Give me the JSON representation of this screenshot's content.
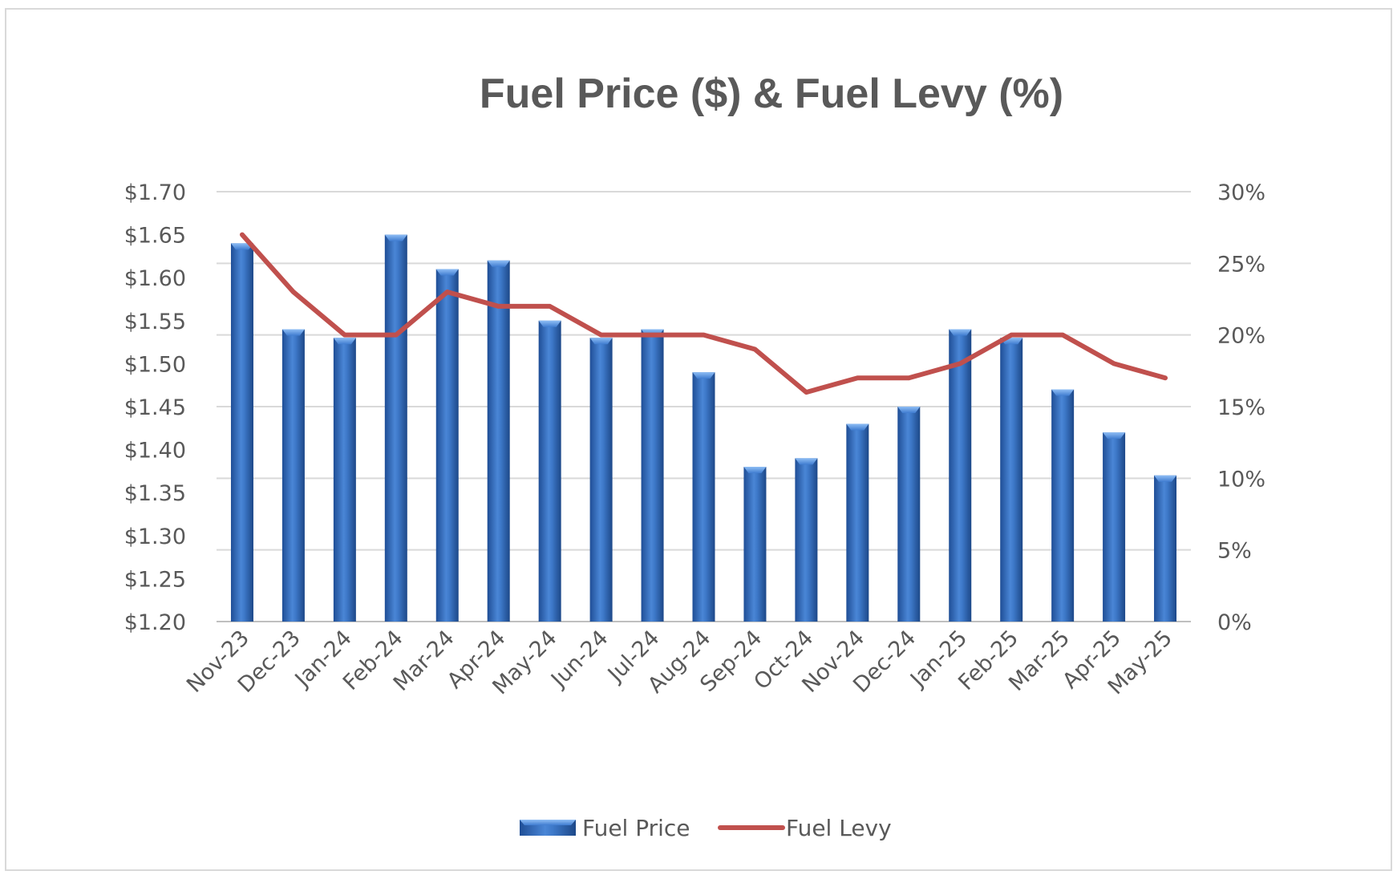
{
  "chart_data": {
    "type": "bar",
    "title": "Fuel Price ($) & Fuel Levy (%)",
    "categories": [
      "Nov-23",
      "Dec-23",
      "Jan-24",
      "Feb-24",
      "Mar-24",
      "Apr-24",
      "May-24",
      "Jun-24",
      "Jul-24",
      "Aug-24",
      "Sep-24",
      "Oct-24",
      "Nov-24",
      "Dec-24",
      "Jan-25",
      "Feb-25",
      "Mar-25",
      "Apr-25",
      "May-25"
    ],
    "series": [
      {
        "name": "Fuel Price",
        "type": "bar",
        "axis": "left",
        "color": "#3a6fc0",
        "values": [
          1.64,
          1.54,
          1.53,
          1.65,
          1.61,
          1.62,
          1.55,
          1.53,
          1.54,
          1.49,
          1.38,
          1.39,
          1.43,
          1.45,
          1.54,
          1.53,
          1.47,
          1.42,
          1.37
        ]
      },
      {
        "name": "Fuel Levy",
        "type": "line",
        "axis": "right",
        "color": "#c0504d",
        "values": [
          27,
          23,
          20,
          20,
          23,
          22,
          22,
          20,
          20,
          20,
          19,
          16,
          17,
          17,
          18,
          20,
          20,
          18,
          17
        ]
      }
    ],
    "y_left": {
      "ylim": [
        1.2,
        1.7
      ],
      "ticks": [
        1.2,
        1.25,
        1.3,
        1.35,
        1.4,
        1.45,
        1.5,
        1.55,
        1.6,
        1.65,
        1.7
      ],
      "tick_labels": [
        "$1.20",
        "$1.25",
        "$1.30",
        "$1.35",
        "$1.40",
        "$1.45",
        "$1.50",
        "$1.55",
        "$1.60",
        "$1.65",
        "$1.70"
      ]
    },
    "y_right": {
      "ylim": [
        0,
        30
      ],
      "ticks": [
        0,
        5,
        10,
        15,
        20,
        25,
        30
      ],
      "tick_labels": [
        "0%",
        "5%",
        "10%",
        "15%",
        "20%",
        "25%",
        "30%"
      ]
    },
    "grid": true,
    "legend": "bottom",
    "xlabel": "",
    "ylabel": ""
  }
}
